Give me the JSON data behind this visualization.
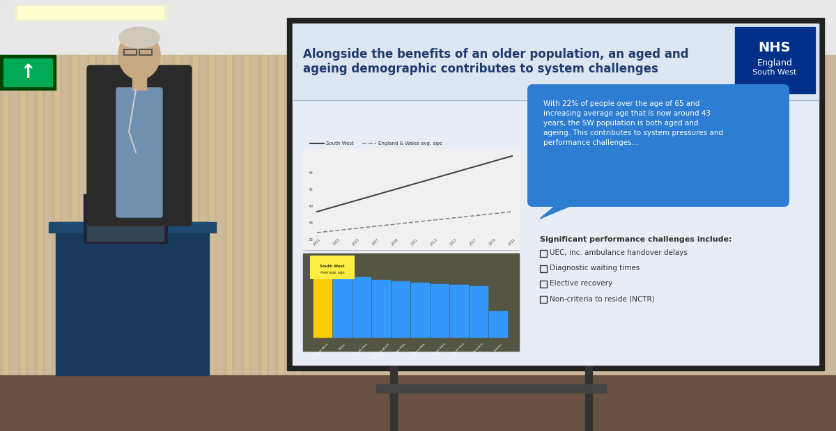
{
  "title": "Alongside the benefits of an older population, an aged and\nageing demographic contributes to system challenges",
  "slide_bg": "#e8edf5",
  "nhs_box_color": "#003087",
  "title_color": "#1f3b6e",
  "bubble_text": "With 22% of people over the age of 65 and\nincreasing average age that is now around 43\nyears, the SW population is both aged and\nageing. This contributes to system pressures and\nperformance challenges...",
  "bubble_bg": "#2d7dd2",
  "bubble_text_color": "#ffffff",
  "challenges_title": "Significant performance challenges include:",
  "challenges": [
    "UEC, inc. ambulance handover delays",
    "Diagnostic waiting times",
    "Elective recovery",
    "Non-criteria to reside (NCTR)"
  ],
  "line_chart_label1": "South West",
  "line_chart_label2": "England & Wales avg. age",
  "bar_chart_categories": [
    "South West",
    "Wales",
    "South East",
    "East of England",
    "East Mids",
    "West Mids",
    "North West",
    "North East",
    "Yorkshire",
    "London"
  ],
  "bar_colors_main": "#3399ff",
  "bar_highlight": "#ffcc00",
  "curtain_color": "#d4bc9a",
  "podium_color": "#1a3a5c",
  "ceiling_color": "#e8e8e8",
  "wall_color": "#c9b99a",
  "sign_color": "#00aa55",
  "screen_frame": "#222222"
}
